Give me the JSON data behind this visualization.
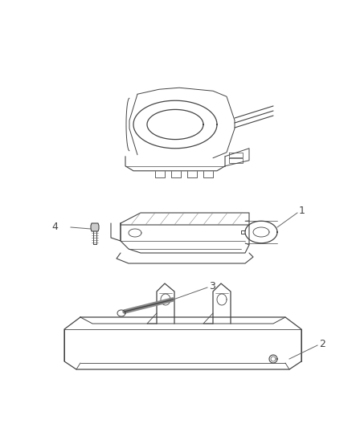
{
  "background_color": "#ffffff",
  "line_color": "#444444",
  "callout_color": "#444444",
  "fig_width": 4.38,
  "fig_height": 5.33,
  "dpi": 100,
  "label_fontsize": 9,
  "callout_line_color": "#666666"
}
